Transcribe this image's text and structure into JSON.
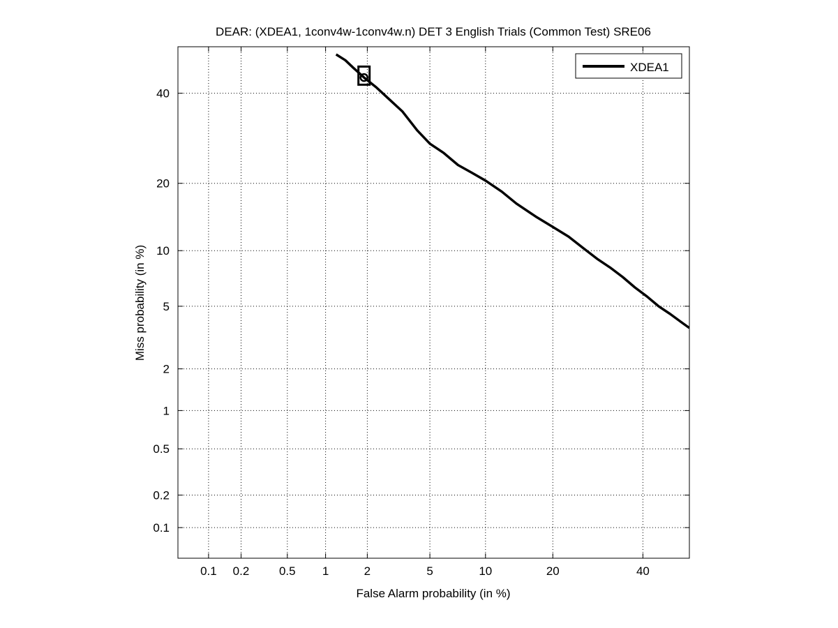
{
  "chart_data": {
    "type": "line",
    "title": "DEAR: (XDEA1, 1conv4w-1conv4w.n) DET 3 English Trials (Common Test) SRE06",
    "xlabel": "False Alarm probability (in %)",
    "ylabel": "Miss probability (in %)",
    "scale": "normal-deviate (probit)",
    "xlim": [
      0.05,
      52
    ],
    "ylim": [
      0.05,
      52
    ],
    "x_ticks": [
      0.1,
      0.2,
      0.5,
      1,
      2,
      5,
      10,
      20,
      40
    ],
    "x_tick_labels": [
      "0.1",
      "0.2",
      "0.5",
      "1",
      "2",
      "5",
      "10",
      "20",
      "40"
    ],
    "y_ticks": [
      0.1,
      0.2,
      0.5,
      1,
      2,
      5,
      10,
      20,
      40
    ],
    "y_tick_labels": [
      "0.1",
      "0.2",
      "0.5",
      "1",
      "2",
      "5",
      "10",
      "20",
      "40"
    ],
    "grid": true,
    "grid_style": "dotted",
    "legend_position": "top-right",
    "series": [
      {
        "name": "XDEA1",
        "color": "#000000",
        "x": [
          1.2,
          1.4,
          1.6,
          1.9,
          2.3,
          2.8,
          3.4,
          4.2,
          5.0,
          6.0,
          7.2,
          8.5,
          10,
          12,
          14,
          17,
          20,
          23,
          26,
          29,
          32,
          35,
          38,
          41,
          44,
          47,
          50,
          52
        ],
        "y": [
          50,
          48.5,
          46.5,
          44,
          41.5,
          38.5,
          35.5,
          31,
          28,
          26,
          23.5,
          22,
          20.5,
          18.5,
          16.5,
          14.5,
          13,
          11.7,
          10.3,
          9.1,
          8.2,
          7.3,
          6.4,
          5.7,
          5.0,
          4.5,
          4.0,
          3.7
        ]
      }
    ],
    "markers": [
      {
        "type": "square",
        "x": 1.9,
        "y": 44.5,
        "color": "#000000"
      },
      {
        "type": "circle",
        "x": 1.9,
        "y": 44.0,
        "color": "#000000"
      }
    ]
  }
}
